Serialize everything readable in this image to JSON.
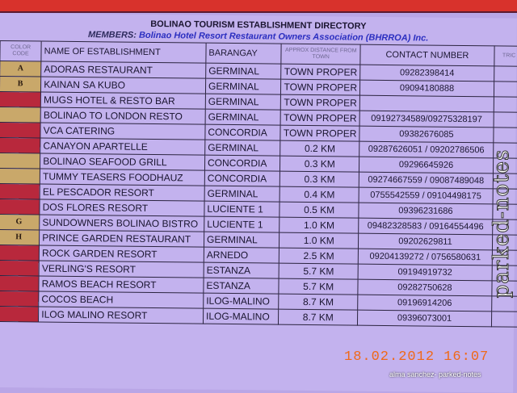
{
  "board": {
    "title": "BOLINAO TOURISM ESTABLISHMENT DIRECTORY",
    "members_label": "MEMBERS:",
    "members_org": "Bolinao Hotel Resort Restaurant Owners Association (BHRROA) Inc."
  },
  "columns": {
    "code": "COLOR CODE",
    "name": "NAME OF ESTABLISHMENT",
    "barangay": "BARANGAY",
    "distance": "APPROX DISTANCE FROM TOWN",
    "contact": "CONTACT NUMBER",
    "trike": "TRIC FA"
  },
  "colors": {
    "tan": "#c9a86a",
    "red": "#b8283c"
  },
  "rows": [
    {
      "code": "A",
      "color": "#c9a86a",
      "name": "ADORAS RESTAURANT",
      "barangay": "GERMINAL",
      "distance": "TOWN PROPER",
      "contact": "09282398414"
    },
    {
      "code": "B",
      "color": "#c9a86a",
      "name": "KAINAN SA KUBO",
      "barangay": "GERMINAL",
      "distance": "TOWN PROPER",
      "contact": "09094180888"
    },
    {
      "code": "",
      "color": "#b8283c",
      "name": "MUGS HOTEL & RESTO BAR",
      "barangay": "GERMINAL",
      "distance": "TOWN PROPER",
      "contact": ""
    },
    {
      "code": "",
      "color": "#c9a86a",
      "name": "BOLINAO TO LONDON RESTO",
      "barangay": "GERMINAL",
      "distance": "TOWN PROPER",
      "contact": "09192734589/09275328197"
    },
    {
      "code": "",
      "color": "#b8283c",
      "name": "VCA CATERING",
      "barangay": "CONCORDIA",
      "distance": "TOWN PROPER",
      "contact": "09382676085"
    },
    {
      "code": "",
      "color": "#b8283c",
      "name": "CANAYON APARTELLE",
      "barangay": "GERMINAL",
      "distance": "0.2 KM",
      "contact": "09287626051 / 09202786506"
    },
    {
      "code": "",
      "color": "#c9a86a",
      "name": "BOLINAO SEAFOOD GRILL",
      "barangay": "CONCORDIA",
      "distance": "0.3 KM",
      "contact": "09296645926"
    },
    {
      "code": "",
      "color": "#c9a86a",
      "name": "TUMMY TEASERS FOODHAUZ",
      "barangay": "CONCORDIA",
      "distance": "0.3 KM",
      "contact": "09274667559 / 09087489048"
    },
    {
      "code": "",
      "color": "#b8283c",
      "name": "EL PESCADOR RESORT",
      "barangay": "GERMINAL",
      "distance": "0.4 KM",
      "contact": "0755542559 / 09104498175"
    },
    {
      "code": "",
      "color": "#b8283c",
      "name": "DOS FLORES RESORT",
      "barangay": "LUCIENTE 1",
      "distance": "0.5 KM",
      "contact": "09396231686"
    },
    {
      "code": "G",
      "color": "#c9a86a",
      "name": "SUNDOWNERS BOLINAO BISTRO",
      "barangay": "LUCIENTE 1",
      "distance": "1.0 KM",
      "contact": "09482328583 / 09164554496"
    },
    {
      "code": "H",
      "color": "#c9a86a",
      "name": "PRINCE GARDEN RESTAURANT",
      "barangay": "GERMINAL",
      "distance": "1.0 KM",
      "contact": "09202629811"
    },
    {
      "code": "",
      "color": "#b8283c",
      "name": "ROCK GARDEN RESORT",
      "barangay": "ARNEDO",
      "distance": "2.5 KM",
      "contact": "09204139272 / 0756580631"
    },
    {
      "code": "",
      "color": "#b8283c",
      "name": "VERLING'S RESORT",
      "barangay": "ESTANZA",
      "distance": "5.7 KM",
      "contact": "09194919732"
    },
    {
      "code": "",
      "color": "#b8283c",
      "name": "RAMOS BEACH RESORT",
      "barangay": "ESTANZA",
      "distance": "5.7 KM",
      "contact": "09282750628"
    },
    {
      "code": "",
      "color": "#b8283c",
      "name": "COCOS BEACH",
      "barangay": "ILOG-MALINO",
      "distance": "8.7 KM",
      "contact": "09196914206"
    },
    {
      "code": "",
      "color": "#b8283c",
      "name": "ILOG MALINO RESORT",
      "barangay": "ILOG-MALINO",
      "distance": "8.7 KM",
      "contact": "09396073001"
    }
  ],
  "overlay": {
    "timestamp": "18.02.2012 16:07",
    "credit": "alma sanchez- parked-notes",
    "watermark": "parked-notes"
  }
}
